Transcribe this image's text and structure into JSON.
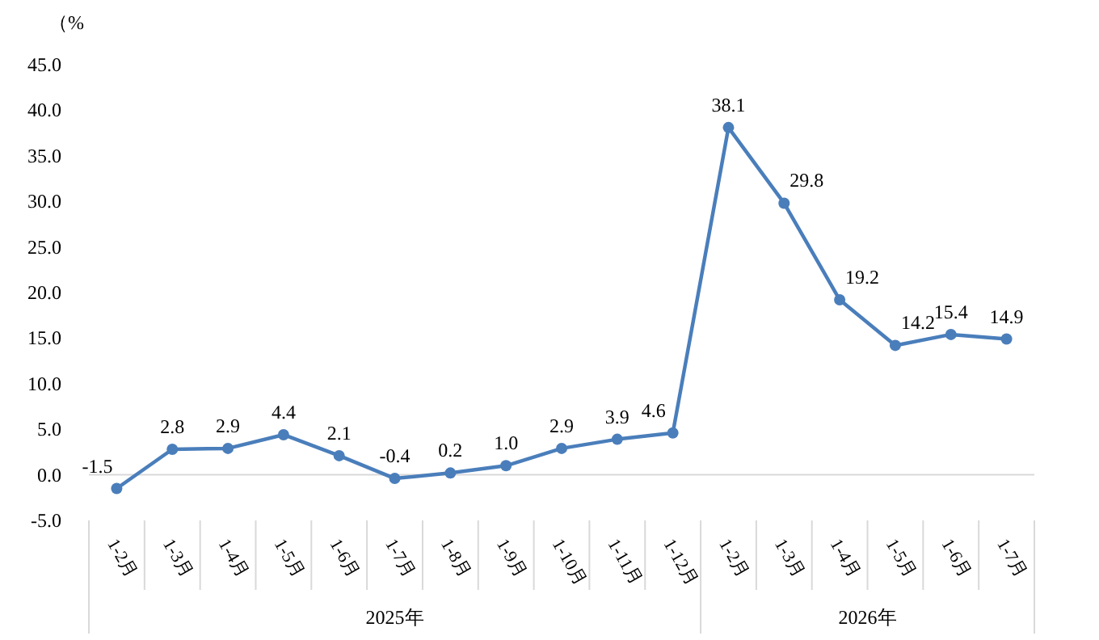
{
  "chart_data": {
    "type": "line",
    "ylabel": "（%",
    "categories": [
      "1-2月",
      "1-3月",
      "1-4月",
      "1-5月",
      "1-6月",
      "1-7月",
      "1-8月",
      "1-9月",
      "1-10月",
      "1-11月",
      "1-12月",
      "1-2月",
      "1-3月",
      "1-4月",
      "1-5月",
      "1-6月",
      "1-7月"
    ],
    "series": [
      {
        "color": "#4a7ebb",
        "values": [
          -1.5,
          2.8,
          2.9,
          4.4,
          2.1,
          -0.4,
          0.2,
          1.0,
          2.9,
          3.9,
          4.6,
          38.1,
          29.8,
          19.2,
          14.2,
          15.4,
          14.9
        ],
        "value_labels": [
          "-1.5",
          "2.8",
          "2.9",
          "4.4",
          "2.1",
          "-0.4",
          "0.2",
          "1.0",
          "2.9",
          "3.9",
          "4.6",
          "38.1",
          "29.8",
          "19.2",
          "14.2",
          "15.4",
          "14.9"
        ]
      }
    ],
    "annotations": [
      "2025年",
      "2026年"
    ],
    "ylim": [
      -5,
      45
    ],
    "yticks": [
      {
        "value": -5,
        "label": "-5.0"
      },
      {
        "value": 0,
        "label": "0.0"
      },
      {
        "value": 5,
        "label": "5.0"
      },
      {
        "value": 10,
        "label": "10.0"
      },
      {
        "value": 15,
        "label": "15.0"
      },
      {
        "value": 20,
        "label": "20.0"
      },
      {
        "value": 25,
        "label": "25.0"
      },
      {
        "value": 30,
        "label": "30.0"
      },
      {
        "value": 35,
        "label": "35.0"
      },
      {
        "value": 40,
        "label": "40.0"
      },
      {
        "value": 45,
        "label": "45.0"
      }
    ],
    "marker": "circle",
    "line_style": "solid"
  }
}
